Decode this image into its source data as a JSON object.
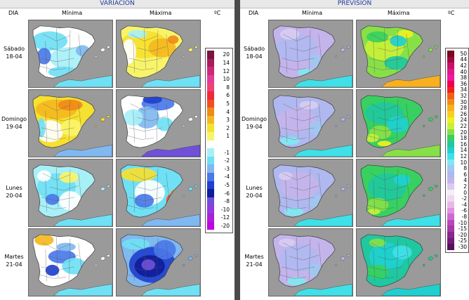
{
  "sections": [
    {
      "title": "VARIACION",
      "col_day": "DIA",
      "col_min": "Mínima",
      "col_max": "Máxima",
      "unit": "ºC"
    },
    {
      "title": "PREVISION",
      "col_day": "DIA",
      "col_min": "Mínima",
      "col_max": "Máxima",
      "unit": "ºC"
    }
  ],
  "days": [
    {
      "name": "Sábado",
      "date": "18-04"
    },
    {
      "name": "Domingo",
      "date": "19-04"
    },
    {
      "name": "Lunes",
      "date": "20-04"
    },
    {
      "name": "Martes",
      "date": "21-04"
    }
  ],
  "legend_variation": {
    "values": [
      "20",
      "14",
      "12",
      "10",
      "8",
      "6",
      "5",
      "4",
      "3",
      "2",
      "1",
      "",
      "-1",
      "-2",
      "-3",
      "-4",
      "-5",
      "-6",
      "-8",
      "-10",
      "-12",
      "-20"
    ],
    "colors": [
      "#7a1440",
      "#a81e5c",
      "#cc2a78",
      "#e03c98",
      "#f04078",
      "#f02838",
      "#f05020",
      "#f08a18",
      "#f4b820",
      "#f6e030",
      "#f8f46a",
      "#ffffff",
      "#a8f0f8",
      "#70e0f4",
      "#80b8f0",
      "#4a78e8",
      "#2040d0",
      "#101c98",
      "#7050d8",
      "#9438e0",
      "#a820d8",
      "#c000e0"
    ]
  },
  "legend_forecast": {
    "values": [
      "50",
      "44",
      "42",
      "40",
      "38",
      "36",
      "34",
      "32",
      "30",
      "28",
      "26",
      "24",
      "22",
      "20",
      "18",
      "16",
      "14",
      "12",
      "10",
      "8",
      "6",
      "4",
      "2",
      "0",
      "-2",
      "-4",
      "-6",
      "-8",
      "-10",
      "-15",
      "-20",
      "-25",
      "-30"
    ],
    "colors": [
      "#7a0820",
      "#a00a40",
      "#c8106a",
      "#e01888",
      "#f0189c",
      "#f00050",
      "#f02020",
      "#f06018",
      "#f08c18",
      "#f8b020",
      "#f8d020",
      "#f0f020",
      "#c8f038",
      "#88e048",
      "#38d060",
      "#20c8a0",
      "#20d0d0",
      "#40e0e8",
      "#80e8f0",
      "#a0c8f0",
      "#b0b8f0",
      "#c4b4ec",
      "#d8ccf0",
      "#f4f0f4",
      "#f0d8f0",
      "#e8b8e8",
      "#e090e0",
      "#d068d0",
      "#b848b8",
      "#a838a8",
      "#882890",
      "#701c78",
      "#581060"
    ]
  },
  "colors": {
    "sea": "#9a9a9a",
    "north_africa": "#b4b4b4",
    "border": "#3a3a3a",
    "title_text": "#1a3a9c",
    "separator": "#4a4a4a"
  }
}
